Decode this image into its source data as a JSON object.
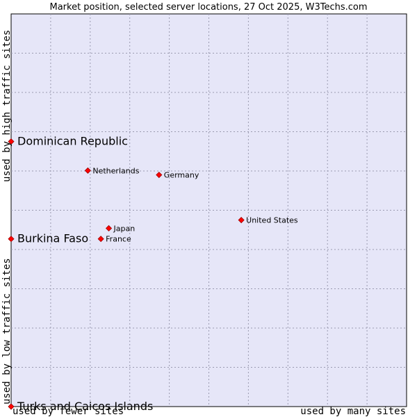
{
  "chart_data": {
    "type": "scatter",
    "title": "Market position, selected server locations, 27 Oct 2025, W3Techs.com",
    "xlabel_low": "used by fewer sites",
    "xlabel_high": "used by many sites",
    "ylabel_low": "used by low traffic sites",
    "ylabel_high": "used by high traffic sites",
    "xlim": [
      0,
      100
    ],
    "ylim": [
      0,
      100
    ],
    "grid": true,
    "points": [
      {
        "label": "Dominican Republic",
        "x": 0,
        "y": 67.5,
        "highlight": true
      },
      {
        "label": "Burkina Faso",
        "x": 0,
        "y": 42.7,
        "highlight": true
      },
      {
        "label": "Turks and Caicos Islands",
        "x": 0,
        "y": 0,
        "highlight": true
      },
      {
        "label": "Netherlands",
        "x": 19.4,
        "y": 60.1,
        "highlight": false
      },
      {
        "label": "Germany",
        "x": 37.4,
        "y": 59.0,
        "highlight": false
      },
      {
        "label": "United States",
        "x": 58.2,
        "y": 47.5,
        "highlight": false
      },
      {
        "label": "Japan",
        "x": 24.7,
        "y": 45.4,
        "highlight": false
      },
      {
        "label": "France",
        "x": 22.7,
        "y": 42.7,
        "highlight": false
      }
    ]
  },
  "colors": {
    "plot_background": "#e6e6f8",
    "grid": "#9a9ab0",
    "marker": "#ff0000",
    "marker_outline": "#990000"
  }
}
